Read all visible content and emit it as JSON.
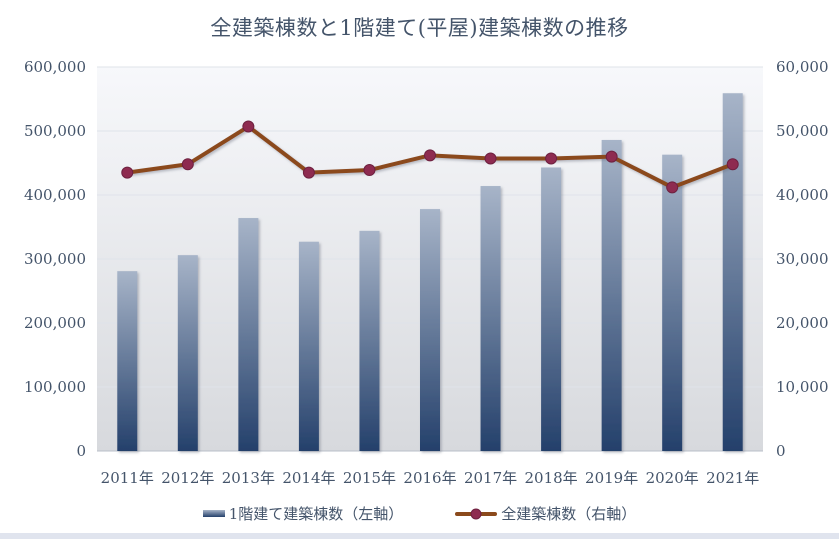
{
  "title": "全建築棟数と1階建て(平屋)建築棟数の推移",
  "colors": {
    "text": "#44546A",
    "bar_gradient_top": "#a7b4c8",
    "bar_gradient_bottom": "#24406b",
    "line": "#8B4A1C",
    "marker_fill": "#8E2B50",
    "marker_stroke": "#6E2140",
    "gridline": "#dfe3ea",
    "zero_axis_line": "#b9bfc9",
    "plot_bg_top": "#f7f8fb",
    "plot_bg_bottom": "#d7d9dd",
    "bottom_strip": "#e0e4ee"
  },
  "chart_data": {
    "type": "bar+line (dual axis)",
    "title": "全建築棟数と1階建て(平屋)建築棟数の推移",
    "categories": [
      "2011年",
      "2012年",
      "2013年",
      "2014年",
      "2015年",
      "2016年",
      "2017年",
      "2018年",
      "2019年",
      "2020年",
      "2021年"
    ],
    "series": [
      {
        "name": "1階建て建築棟数（左軸）",
        "type": "bar",
        "axis": "left",
        "values": [
          281000,
          306000,
          364000,
          327000,
          344000,
          378000,
          414000,
          443000,
          486000,
          463000,
          559000
        ]
      },
      {
        "name": "全建築棟数（右軸）",
        "type": "line",
        "axis": "right",
        "values": [
          43500,
          44800,
          50700,
          43500,
          43900,
          46200,
          45700,
          45700,
          46000,
          41200,
          44800
        ]
      }
    ],
    "left_axis": {
      "min": 0,
      "max": 600000,
      "step": 100000,
      "tick_labels": [
        "600,000",
        "500,000",
        "400,000",
        "300,000",
        "200,000",
        "100,000",
        "0"
      ]
    },
    "right_axis": {
      "min": 0,
      "max": 60000,
      "step": 10000,
      "tick_labels": [
        "60,000",
        "50,000",
        "40,000",
        "30,000",
        "20,000",
        "10,000",
        "0"
      ]
    },
    "grid": true,
    "legend_position": "bottom"
  }
}
